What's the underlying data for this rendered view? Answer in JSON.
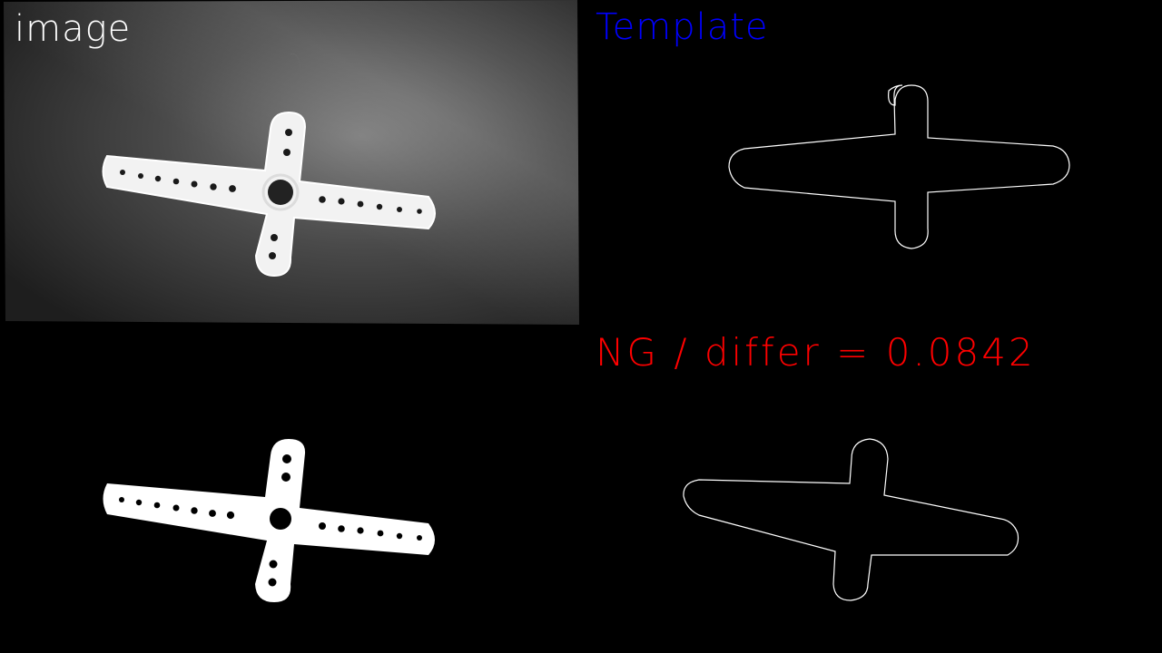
{
  "panels": {
    "image": {
      "label": "image",
      "label_color": "#ffffff"
    },
    "template": {
      "label": "Template",
      "label_color": "#0000ff"
    },
    "mask": {},
    "contour": {}
  },
  "result": {
    "verdict": "NG",
    "text": "NG / differ = 0.0842",
    "color": "#ff0000",
    "differ": 0.0842
  },
  "icons": {
    "part": "servo-horn-icon"
  }
}
